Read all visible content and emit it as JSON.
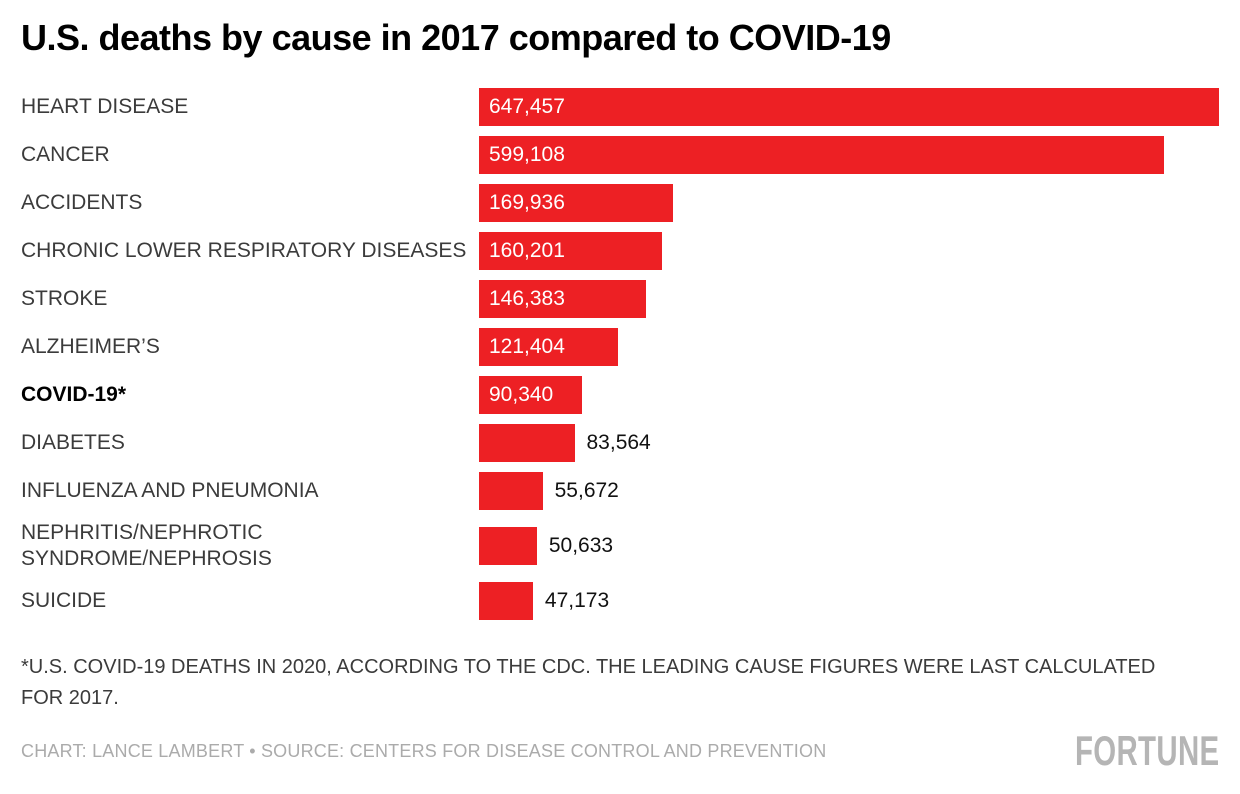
{
  "header": {
    "title": "U.S. deaths by cause in 2017 compared to COVID-19"
  },
  "chart_data": {
    "type": "bar",
    "orientation": "horizontal",
    "title": "U.S. deaths by cause in 2017 compared to COVID-19",
    "bar_color": "#ED2024",
    "category_label_color": "#3B3B3B",
    "inside_value_color": "#FFFFFF",
    "outside_value_color": "#111111",
    "xlim": [
      0,
      647457
    ],
    "grid": false,
    "legend": false,
    "categories": [
      "HEART DISEASE",
      "CANCER",
      "ACCIDENTS",
      "CHRONIC LOWER RESPIRATORY DISEASES",
      "STROKE",
      "ALZHEIMER’S",
      "COVID-19*",
      "DIABETES",
      "INFLUENZA AND PNEUMONIA",
      "NEPHRITIS/NEPHROTIC\nSYNDROME/NEPHROSIS",
      "SUICIDE"
    ],
    "values": [
      647457,
      599108,
      169936,
      160201,
      146383,
      121404,
      90340,
      83564,
      55672,
      50633,
      47173
    ],
    "value_labels": [
      "647,457",
      "599,108",
      "169,936",
      "160,201",
      "146,383",
      "121,404",
      "90,340",
      "83,564",
      "55,672",
      "50,633",
      "47,173"
    ],
    "value_inside": [
      true,
      true,
      true,
      true,
      true,
      true,
      true,
      false,
      false,
      false,
      false
    ],
    "bold_categories": [
      "COVID-19*"
    ]
  },
  "footer": {
    "footnote": "*U.S. COVID-19 DEATHS IN 2020, ACCORDING TO THE CDC. THE LEADING CAUSE FIGURES WERE LAST CALCULATED FOR 2017.",
    "credit": "CHART: LANCE LAMBERT • SOURCE: CENTERS FOR DISEASE CONTROL AND PREVENTION",
    "brand": "FORTUNE"
  }
}
